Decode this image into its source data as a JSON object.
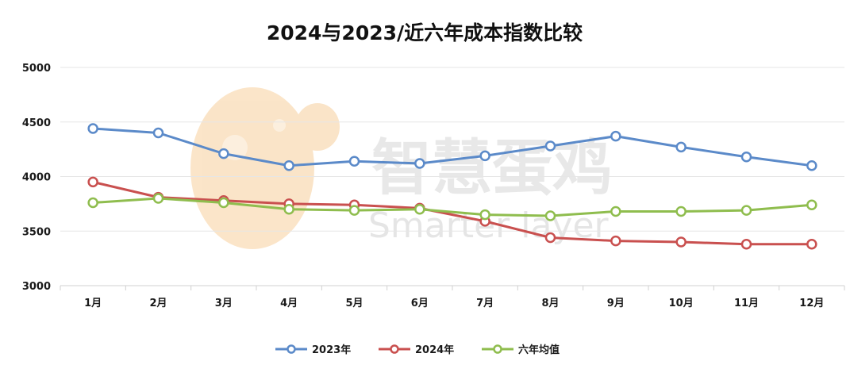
{
  "chart_data": {
    "type": "line",
    "title": "2024与2023/近六年成本指数比较",
    "xlabel": "",
    "ylabel": "",
    "categories": [
      "1月",
      "2月",
      "3月",
      "4月",
      "5月",
      "6月",
      "7月",
      "8月",
      "9月",
      "10月",
      "11月",
      "12月"
    ],
    "ylim": [
      3000,
      5000
    ],
    "yticks": [
      3000,
      3500,
      4000,
      4500,
      5000
    ],
    "grid": true,
    "legend_position": "bottom",
    "series": [
      {
        "name": "2023年",
        "color": "#5b8ac9",
        "values": [
          4440,
          4400,
          4210,
          4100,
          4140,
          4120,
          4190,
          4280,
          4370,
          4270,
          4180,
          4100
        ]
      },
      {
        "name": "2024年",
        "color": "#c9504f",
        "values": [
          3950,
          3810,
          3780,
          3750,
          3740,
          3710,
          3590,
          3440,
          3410,
          3400,
          3380,
          3380
        ]
      },
      {
        "name": "六年均值",
        "color": "#8fbd4e",
        "values": [
          3760,
          3800,
          3760,
          3700,
          3690,
          3700,
          3650,
          3640,
          3680,
          3680,
          3690,
          3740
        ]
      }
    ],
    "watermark": {
      "text": "智慧蛋鸡",
      "subtext": "Smarter layer"
    }
  }
}
